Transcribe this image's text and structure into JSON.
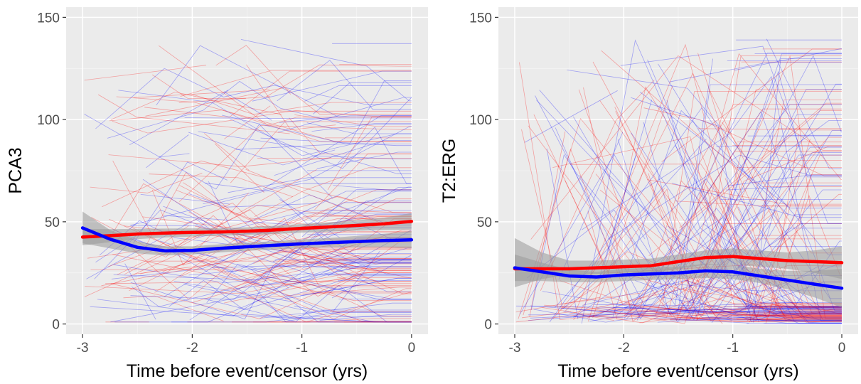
{
  "chart_data": [
    {
      "type": "line",
      "panel": "left",
      "xlabel": "Time before event/censor (yrs)",
      "ylabel": "PCA3",
      "xlim": [
        -3.15,
        0.15
      ],
      "ylim": [
        -5,
        155
      ],
      "x_ticks": [
        -3,
        -2,
        -1,
        0
      ],
      "y_ticks": [
        0,
        50,
        100,
        150
      ],
      "x_tick_labels": [
        "-3",
        "-2",
        "-1",
        "0"
      ],
      "y_tick_labels": [
        "0",
        "50",
        "100",
        "150"
      ],
      "background": "#ebebeb",
      "grid": true,
      "colors": {
        "red": "#ff0000",
        "blue": "#0000ff",
        "band": "#999999"
      },
      "series": [
        {
          "color": "red",
          "x": [
            -3.0,
            -2.75,
            -2.5,
            -2.25,
            -2.0,
            -1.75,
            -1.5,
            -1.25,
            -1.0,
            -0.75,
            -0.5,
            -0.25,
            0.0
          ],
          "y": [
            42.5,
            43.2,
            44.0,
            44.5,
            44.8,
            45.0,
            45.4,
            46.0,
            46.8,
            47.5,
            48.2,
            49.0,
            50.2
          ],
          "lower": [
            38.5,
            40.0,
            41.5,
            42.3,
            42.8,
            43.2,
            43.5,
            44.0,
            44.7,
            45.2,
            45.6,
            46.0,
            46.2
          ],
          "upper": [
            46.5,
            46.4,
            46.5,
            46.7,
            46.8,
            46.8,
            47.3,
            48.0,
            48.9,
            49.8,
            50.8,
            52.0,
            54.2
          ]
        },
        {
          "color": "blue",
          "x": [
            -3.0,
            -2.75,
            -2.5,
            -2.25,
            -2.0,
            -1.75,
            -1.5,
            -1.25,
            -1.0,
            -0.75,
            -0.5,
            -0.25,
            0.0
          ],
          "y": [
            47.0,
            41.5,
            37.5,
            35.8,
            36.0,
            37.0,
            37.8,
            38.5,
            39.2,
            39.8,
            40.3,
            40.8,
            41.2
          ],
          "lower": [
            39.5,
            37.0,
            34.5,
            33.5,
            34.0,
            35.0,
            35.8,
            36.5,
            37.0,
            37.5,
            37.5,
            37.5,
            37.0
          ],
          "upper": [
            55.0,
            46.0,
            40.5,
            38.0,
            38.0,
            39.0,
            39.8,
            40.5,
            41.4,
            42.1,
            43.1,
            44.1,
            45.5
          ]
        }
      ]
    },
    {
      "type": "line",
      "panel": "right",
      "xlabel": "Time before event/censor (yrs)",
      "ylabel": "T2:ERG",
      "xlim": [
        -3.15,
        0.15
      ],
      "ylim": [
        -5,
        155
      ],
      "x_ticks": [
        -3,
        -2,
        -1,
        0
      ],
      "y_ticks": [
        0,
        50,
        100,
        150
      ],
      "x_tick_labels": [
        "-3",
        "-2",
        "-1",
        "0"
      ],
      "y_tick_labels": [
        "0",
        "50",
        "100",
        "150"
      ],
      "background": "#ebebeb",
      "grid": true,
      "colors": {
        "red": "#ff0000",
        "blue": "#0000ff",
        "band": "#999999"
      },
      "series": [
        {
          "color": "red",
          "x": [
            -3.0,
            -2.75,
            -2.5,
            -2.25,
            -2.0,
            -1.75,
            -1.5,
            -1.25,
            -1.0,
            -0.75,
            -0.5,
            -0.25,
            0.0
          ],
          "y": [
            27.0,
            27.0,
            27.0,
            27.5,
            28.0,
            28.5,
            30.5,
            32.5,
            33.0,
            32.0,
            31.0,
            30.5,
            30.0
          ],
          "lower": [
            18.0,
            22.0,
            24.0,
            24.5,
            25.0,
            25.0,
            27.0,
            29.0,
            29.0,
            28.0,
            27.0,
            25.0,
            22.0
          ],
          "upper": [
            42.0,
            35.0,
            31.0,
            31.0,
            31.5,
            32.0,
            34.0,
            36.0,
            37.0,
            36.0,
            35.0,
            36.0,
            38.0
          ]
        },
        {
          "color": "blue",
          "x": [
            -3.0,
            -2.75,
            -2.5,
            -2.25,
            -2.0,
            -1.75,
            -1.5,
            -1.25,
            -1.0,
            -0.75,
            -0.5,
            -0.25,
            0.0
          ],
          "y": [
            27.5,
            25.5,
            23.5,
            23.0,
            24.0,
            24.5,
            25.0,
            26.0,
            25.5,
            23.5,
            21.5,
            19.5,
            17.5
          ],
          "lower": [
            21.0,
            21.0,
            20.5,
            20.5,
            21.0,
            21.5,
            22.0,
            22.5,
            22.0,
            20.0,
            17.0,
            13.0,
            8.0
          ],
          "upper": [
            34.0,
            30.0,
            26.5,
            25.5,
            27.0,
            27.5,
            28.0,
            29.5,
            29.0,
            27.0,
            26.0,
            26.0,
            27.0
          ]
        }
      ]
    }
  ]
}
